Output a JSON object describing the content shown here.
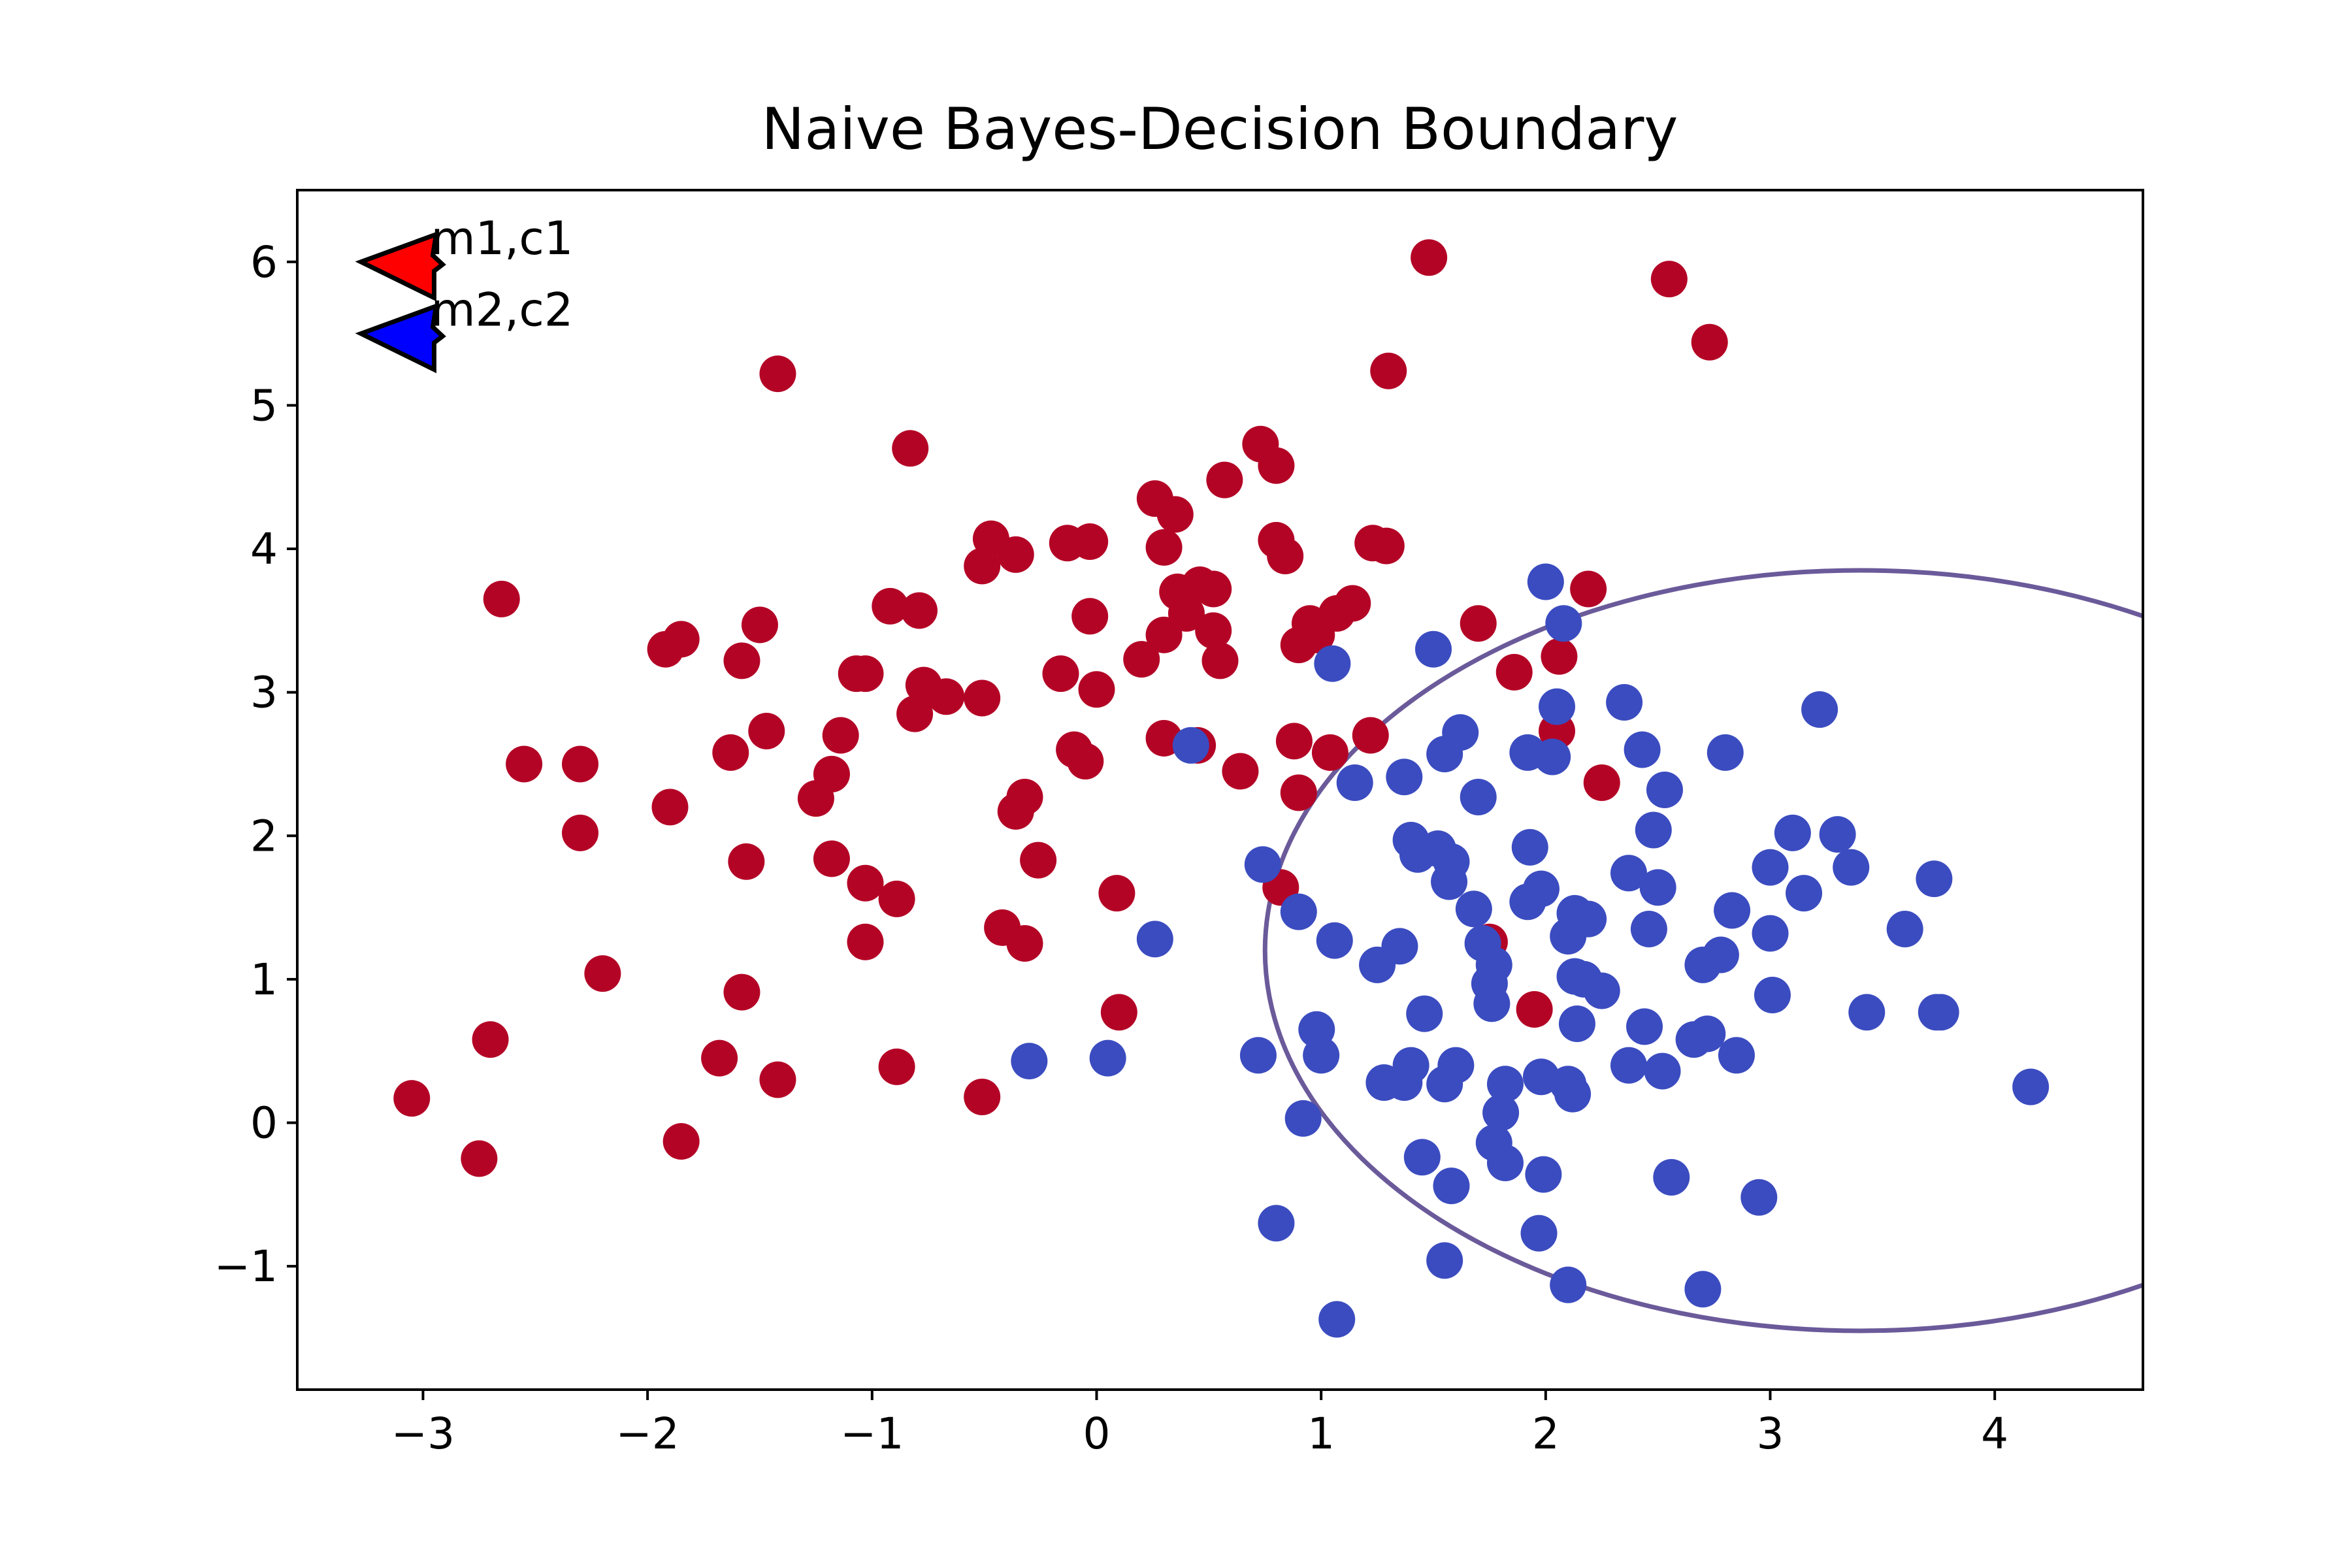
{
  "chart_data": {
    "type": "scatter",
    "title": "Naive Bayes-Decision Boundary",
    "xlabel": "",
    "ylabel": "",
    "xlim": [
      -3.56,
      4.66
    ],
    "ylim": [
      -1.86,
      6.5
    ],
    "grid": false,
    "x_ticks": [
      -3,
      -2,
      -1,
      0,
      1,
      2,
      3,
      4
    ],
    "x_tick_labels": [
      "−3",
      "−2",
      "−1",
      "0",
      "1",
      "2",
      "3",
      "4"
    ],
    "y_ticks": [
      -1,
      0,
      1,
      2,
      3,
      4,
      5,
      6
    ],
    "y_tick_labels": [
      "−1",
      "0",
      "1",
      "2",
      "3",
      "4",
      "5",
      "6"
    ],
    "colors": {
      "class1": "#b40426",
      "class2": "#3b4cc0",
      "boundary": "#6a5a9a",
      "m1c1": "#ff0000",
      "m2c2": "#0000ff"
    },
    "annotations": [
      {
        "label": "m1,c1",
        "x": -3.0,
        "y": 6.0,
        "color": "#ff0000"
      },
      {
        "label": "m2,c2",
        "x": -3.0,
        "y": 5.5,
        "color": "#0000ff"
      }
    ],
    "boundary": {
      "center": [
        3.4,
        1.2
      ],
      "radius": 2.65,
      "y_top_at": 3.82
    },
    "series": [
      {
        "color": "#b40426",
        "points": [
          [
            -3.05,
            0.17
          ],
          [
            -2.75,
            -0.25
          ],
          [
            -2.7,
            0.58
          ],
          [
            -2.65,
            3.65
          ],
          [
            -2.55,
            2.5
          ],
          [
            -2.3,
            2.5
          ],
          [
            -2.3,
            2.02
          ],
          [
            -2.2,
            1.04
          ],
          [
            -1.92,
            3.3
          ],
          [
            -1.9,
            2.2
          ],
          [
            -1.85,
            3.37
          ],
          [
            -1.85,
            -0.13
          ],
          [
            -1.68,
            0.45
          ],
          [
            -1.63,
            2.58
          ],
          [
            -1.58,
            3.22
          ],
          [
            -1.58,
            0.91
          ],
          [
            -1.56,
            1.82
          ],
          [
            -1.5,
            3.47
          ],
          [
            -1.47,
            2.73
          ],
          [
            -1.42,
            5.22
          ],
          [
            -1.42,
            0.3
          ],
          [
            -1.25,
            2.26
          ],
          [
            -1.18,
            2.43
          ],
          [
            -1.18,
            1.84
          ],
          [
            -1.14,
            2.7
          ],
          [
            -1.07,
            3.13
          ],
          [
            -1.03,
            3.13
          ],
          [
            -1.03,
            1.67
          ],
          [
            -1.03,
            1.26
          ],
          [
            -0.92,
            3.6
          ],
          [
            -0.89,
            1.56
          ],
          [
            -0.89,
            0.39
          ],
          [
            -0.83,
            4.7
          ],
          [
            -0.81,
            2.85
          ],
          [
            -0.79,
            3.57
          ],
          [
            -0.77,
            3.05
          ],
          [
            -0.67,
            2.97
          ],
          [
            -0.51,
            3.88
          ],
          [
            -0.51,
            0.18
          ],
          [
            -0.51,
            2.96
          ],
          [
            -0.47,
            4.07
          ],
          [
            -0.42,
            1.36
          ],
          [
            -0.36,
            3.96
          ],
          [
            -0.36,
            2.17
          ],
          [
            -0.32,
            2.27
          ],
          [
            -0.32,
            1.25
          ],
          [
            -0.26,
            1.83
          ],
          [
            -0.16,
            3.13
          ],
          [
            -0.13,
            4.04
          ],
          [
            -0.1,
            2.6
          ],
          [
            -0.05,
            2.52
          ],
          [
            -0.03,
            4.05
          ],
          [
            -0.03,
            3.53
          ],
          [
            0.0,
            3.02
          ],
          [
            0.09,
            1.6
          ],
          [
            0.1,
            0.77
          ],
          [
            0.2,
            3.23
          ],
          [
            0.26,
            4.35
          ],
          [
            0.3,
            2.68
          ],
          [
            0.3,
            3.4
          ],
          [
            0.3,
            4.01
          ],
          [
            0.35,
            4.24
          ],
          [
            0.36,
            3.7
          ],
          [
            0.4,
            3.55
          ],
          [
            0.45,
            2.63
          ],
          [
            0.46,
            3.75
          ],
          [
            0.52,
            3.43
          ],
          [
            0.52,
            3.72
          ],
          [
            0.55,
            3.22
          ],
          [
            0.57,
            4.48
          ],
          [
            0.64,
            2.45
          ],
          [
            0.73,
            4.73
          ],
          [
            0.8,
            4.58
          ],
          [
            0.8,
            4.06
          ],
          [
            0.82,
            1.64
          ],
          [
            0.84,
            3.95
          ],
          [
            0.88,
            2.66
          ],
          [
            0.9,
            2.3
          ],
          [
            0.9,
            3.33
          ],
          [
            0.95,
            3.48
          ],
          [
            0.98,
            3.4
          ],
          [
            1.04,
            2.58
          ],
          [
            1.07,
            3.55
          ],
          [
            1.14,
            3.62
          ],
          [
            1.22,
            2.7
          ],
          [
            1.23,
            4.04
          ],
          [
            1.29,
            4.02
          ],
          [
            1.3,
            5.24
          ],
          [
            1.48,
            6.03
          ],
          [
            1.7,
            3.48
          ],
          [
            1.75,
            1.26
          ],
          [
            1.86,
            3.14
          ],
          [
            1.95,
            0.79
          ],
          [
            2.05,
            2.73
          ],
          [
            2.06,
            3.25
          ],
          [
            2.19,
            3.72
          ],
          [
            2.25,
            2.37
          ],
          [
            2.55,
            5.88
          ],
          [
            2.73,
            5.44
          ]
        ]
      },
      {
        "color": "#3b4cc0",
        "points": [
          [
            -0.3,
            0.43
          ],
          [
            0.05,
            0.45
          ],
          [
            0.26,
            1.28
          ],
          [
            0.42,
            2.63
          ],
          [
            0.72,
            0.47
          ],
          [
            0.74,
            1.8
          ],
          [
            0.8,
            -0.7
          ],
          [
            0.9,
            1.47
          ],
          [
            0.92,
            0.03
          ],
          [
            0.98,
            0.65
          ],
          [
            1.0,
            0.47
          ],
          [
            1.05,
            3.2
          ],
          [
            1.06,
            1.27
          ],
          [
            1.07,
            -1.37
          ],
          [
            1.15,
            2.37
          ],
          [
            1.25,
            1.1
          ],
          [
            1.28,
            0.28
          ],
          [
            1.35,
            1.23
          ],
          [
            1.37,
            2.41
          ],
          [
            1.37,
            0.28
          ],
          [
            1.4,
            0.4
          ],
          [
            1.4,
            1.97
          ],
          [
            1.43,
            1.87
          ],
          [
            1.45,
            -0.24
          ],
          [
            1.46,
            0.76
          ],
          [
            1.5,
            3.3
          ],
          [
            1.52,
            1.91
          ],
          [
            1.55,
            2.57
          ],
          [
            1.55,
            0.27
          ],
          [
            1.55,
            -0.96
          ],
          [
            1.57,
            1.68
          ],
          [
            1.58,
            1.82
          ],
          [
            1.58,
            -0.44
          ],
          [
            1.6,
            0.4
          ],
          [
            1.62,
            2.72
          ],
          [
            1.68,
            1.49
          ],
          [
            1.7,
            2.27
          ],
          [
            1.72,
            1.25
          ],
          [
            1.75,
            0.97
          ],
          [
            1.76,
            0.83
          ],
          [
            1.77,
            -0.14
          ],
          [
            1.77,
            1.1
          ],
          [
            1.8,
            0.07
          ],
          [
            1.82,
            0.27
          ],
          [
            1.82,
            -0.28
          ],
          [
            1.92,
            2.58
          ],
          [
            1.92,
            1.54
          ],
          [
            1.93,
            1.92
          ],
          [
            1.97,
            -0.77
          ],
          [
            1.98,
            1.63
          ],
          [
            1.98,
            0.32
          ],
          [
            1.99,
            -0.36
          ],
          [
            2.0,
            3.77
          ],
          [
            2.03,
            2.55
          ],
          [
            2.05,
            2.9
          ],
          [
            2.08,
            3.48
          ],
          [
            2.1,
            0.27
          ],
          [
            2.1,
            1.3
          ],
          [
            2.1,
            -1.13
          ],
          [
            2.12,
            0.2
          ],
          [
            2.13,
            1.46
          ],
          [
            2.13,
            1.02
          ],
          [
            2.14,
            0.69
          ],
          [
            2.17,
            1.0
          ],
          [
            2.19,
            1.42
          ],
          [
            2.25,
            0.92
          ],
          [
            2.35,
            2.93
          ],
          [
            2.37,
            1.74
          ],
          [
            2.37,
            0.4
          ],
          [
            2.43,
            2.6
          ],
          [
            2.44,
            0.67
          ],
          [
            2.46,
            1.35
          ],
          [
            2.48,
            2.04
          ],
          [
            2.5,
            1.64
          ],
          [
            2.52,
            0.36
          ],
          [
            2.53,
            2.32
          ],
          [
            2.56,
            -0.38
          ],
          [
            2.66,
            0.58
          ],
          [
            2.7,
            1.1
          ],
          [
            2.72,
            0.62
          ],
          [
            2.7,
            -1.16
          ],
          [
            2.78,
            1.17
          ],
          [
            2.8,
            2.58
          ],
          [
            2.83,
            1.48
          ],
          [
            2.85,
            0.47
          ],
          [
            2.95,
            -0.52
          ],
          [
            3.0,
            1.32
          ],
          [
            3.0,
            1.78
          ],
          [
            3.01,
            0.89
          ],
          [
            3.1,
            2.02
          ],
          [
            3.15,
            1.6
          ],
          [
            3.22,
            2.88
          ],
          [
            3.3,
            2.01
          ],
          [
            3.36,
            1.78
          ],
          [
            3.43,
            0.77
          ],
          [
            3.6,
            1.35
          ],
          [
            3.73,
            1.7
          ],
          [
            3.74,
            0.77
          ],
          [
            3.76,
            0.77
          ],
          [
            4.16,
            0.25
          ]
        ]
      }
    ]
  }
}
